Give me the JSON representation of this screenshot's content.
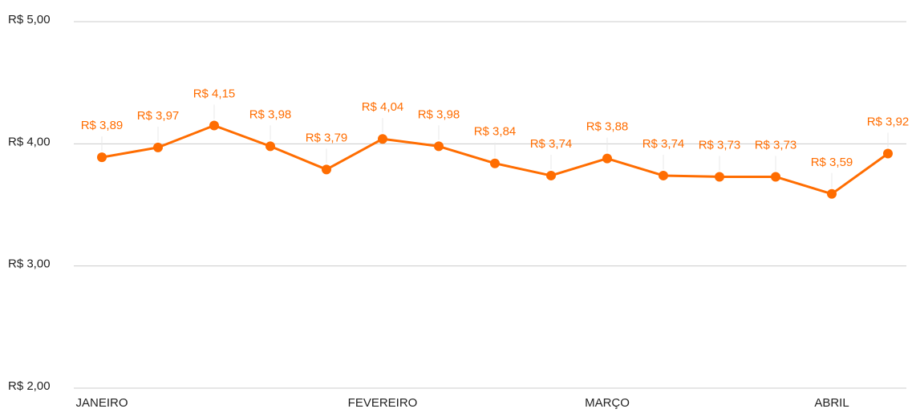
{
  "chart_data": {
    "type": "line",
    "categories": [
      "JANEIRO",
      null,
      null,
      null,
      null,
      "FEVEREIRO",
      null,
      null,
      null,
      "MARÇO",
      null,
      null,
      null,
      "ABRIL",
      null
    ],
    "values": [
      3.89,
      3.97,
      4.15,
      3.98,
      3.79,
      4.04,
      3.98,
      3.84,
      3.74,
      3.88,
      3.74,
      3.73,
      3.73,
      3.59,
      3.92
    ],
    "value_labels": [
      "R$ 3,89",
      "R$ 3,97",
      "R$ 4,15",
      "R$ 3,98",
      "R$ 3,79",
      "R$ 4,04",
      "R$ 3,98",
      "R$ 3,84",
      "R$ 3,74",
      "R$ 3,88",
      "R$ 3,74",
      "R$ 3,73",
      "R$ 3,73",
      "R$ 3,59",
      "R$ 3,92"
    ],
    "color": "#ff6d01",
    "ylim": [
      2,
      5
    ],
    "yticks": [
      {
        "value": 2,
        "label": "R$ 2,00"
      },
      {
        "value": 3,
        "label": "R$ 3,00"
      },
      {
        "value": 4,
        "label": "R$ 4,00"
      },
      {
        "value": 5,
        "label": "R$ 5,00"
      }
    ],
    "grid": true
  }
}
